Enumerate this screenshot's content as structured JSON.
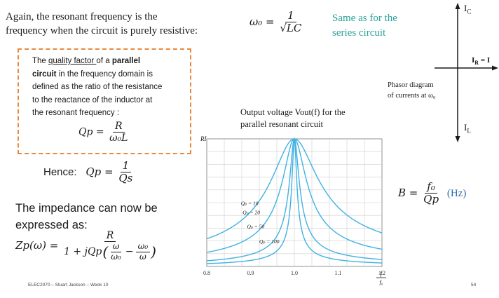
{
  "intro": {
    "line1": "Again, the resonant frequency is the",
    "line2": "frequency when the circuit is purely resistive:",
    "omega0_lhs": "ω₀ =",
    "omega0_num": "1",
    "omega0_den": "√LC"
  },
  "note": {
    "line1": "Same as for the",
    "line2": "series circuit"
  },
  "phasor": {
    "ic_label": "I",
    "ic_sub": "C",
    "ir_label": "I",
    "ir_sub": "R",
    "ir_eq": " = I",
    "il_label": "I",
    "il_sub": "L",
    "caption1": "Phasor diagram",
    "caption2": "of currents at ω₀"
  },
  "definition": {
    "pre": "The ",
    "term": "quality factor ",
    "mid": "of a ",
    "bold1": "parallel",
    "bold2": "circuit",
    "rest1": " in the frequency domain is",
    "line3": "defined as the ratio of the resistance",
    "line4": "to the reactance of the inductor at",
    "line5": "the resonant frequency :",
    "qp_lhs": "Qp =",
    "qp_num": "R",
    "qp_den": "ω₀L"
  },
  "hence": {
    "label": "Hence:",
    "lhs": "Qp =",
    "num": "1",
    "den": "Qs"
  },
  "impedance": {
    "line1": "The impedance can now be",
    "line2": "expressed as:",
    "lhs": "Zp(ω) =",
    "num": "R",
    "den_pre": "1 + jQp",
    "w_num": "ω",
    "w_den": "ω₀",
    "minus": "−",
    "w0_num": "ω₀",
    "w0_den": "ω"
  },
  "bandwidth": {
    "lhs": "B =",
    "num": "f₀",
    "den": "Qp",
    "unit": "(Hz)"
  },
  "chart_data": {
    "type": "line",
    "title_line1": "Output voltage Vout(f) for the",
    "title_line2": "parallel resonant circuit",
    "ylabel": "RI",
    "xlabel_num": "f",
    "xlabel_den": "f₀",
    "xlim": [
      0.8,
      1.2
    ],
    "ylim": [
      0,
      1
    ],
    "x_ticks": [
      "0.8",
      "0.9",
      "1.0",
      "1.1",
      "1.2"
    ],
    "grid": true,
    "series": [
      {
        "name": "Qp = 10",
        "label": "Qₚ = 10",
        "Q": 10
      },
      {
        "name": "Qp = 20",
        "label": "Qₚ = 20",
        "Q": 20
      },
      {
        "name": "Qp = 50",
        "label": "Qₚ = 50",
        "Q": 50
      },
      {
        "name": "Qp = 100",
        "label": "Qₚ = 100",
        "Q": 100
      }
    ],
    "line_color": "#3fb2e3"
  },
  "footer": {
    "left": "ELEC2070 – Stuart Jackson – Week 10",
    "page": "54"
  }
}
